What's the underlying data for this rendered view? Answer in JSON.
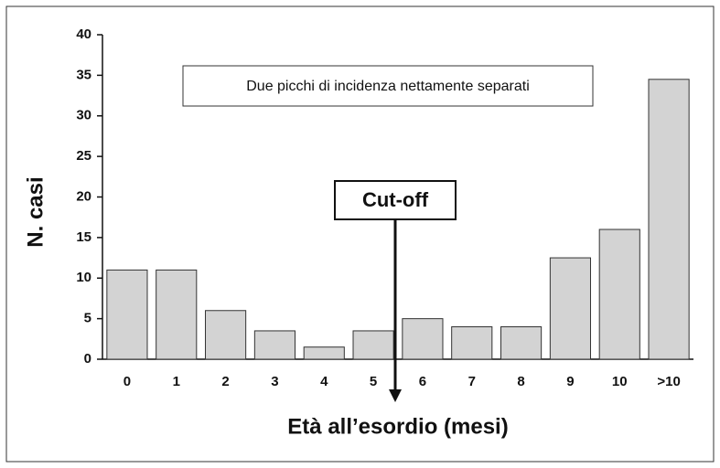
{
  "chart_data": {
    "type": "bar",
    "xlabel": "Età all’esordio (mesi)",
    "ylabel": "N. casi",
    "categories": [
      "0",
      "1",
      "2",
      "3",
      "4",
      "5",
      "6",
      "7",
      "8",
      "9",
      "10",
      ">10"
    ],
    "values": [
      11,
      11,
      6,
      3.5,
      1.5,
      3.5,
      5,
      4,
      4,
      12.5,
      16,
      34.5
    ],
    "color": "#d3d3d3",
    "ylim": [
      0,
      40
    ],
    "yticks": [
      0,
      5,
      10,
      15,
      20,
      25,
      30,
      35,
      40
    ],
    "annotations": [
      "Due picchi di incidenza nettamente separati",
      "Cut-off"
    ]
  }
}
